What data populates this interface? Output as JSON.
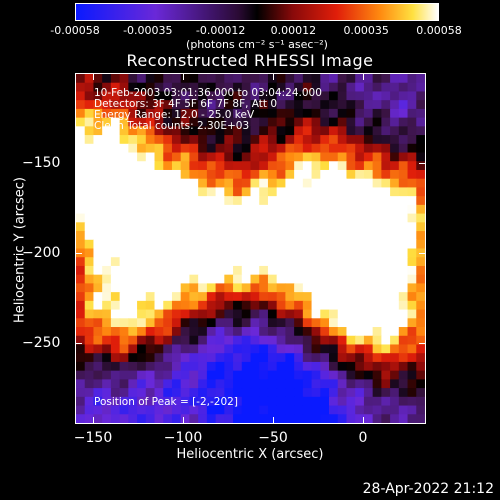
{
  "colorbar": {
    "ticks": [
      "-0.00058",
      "-0.00035",
      "-0.00012",
      "0.00012",
      "0.00035",
      "0.00058"
    ],
    "unit": "(photons cm⁻² s⁻¹ asec⁻²)",
    "range": [
      -0.00058,
      0.00058
    ]
  },
  "chart_data": {
    "type": "heatmap",
    "title": "Reconstructed RHESSI Image",
    "xlabel": "Heliocentric X (arcsec)",
    "ylabel": "Heliocentric Y (arcsec)",
    "xlim": [
      -160,
      35
    ],
    "ylim": [
      -295,
      -100
    ],
    "x_ticks": [
      "−150",
      "−100",
      "−50",
      "0"
    ],
    "y_ticks": [
      "−150",
      "−200",
      "−250"
    ],
    "x_tick_values": [
      -150,
      -100,
      -50,
      0
    ],
    "y_tick_values": [
      -150,
      -200,
      -250
    ],
    "colormap": "blue-purple-red-orange-yellow-white",
    "peak_position": [
      -2,
      -202
    ],
    "bright_regions": [
      {
        "x": -150,
        "y": -140,
        "level": 0.85
      },
      {
        "x": -140,
        "y": -180,
        "level": 0.9
      },
      {
        "x": -135,
        "y": -235,
        "level": 0.85
      },
      {
        "x": -110,
        "y": -170,
        "level": 0.75
      },
      {
        "x": -80,
        "y": -190,
        "level": 0.7
      },
      {
        "x": -50,
        "y": -195,
        "level": 0.8
      },
      {
        "x": -25,
        "y": -160,
        "level": 0.8
      },
      {
        "x": -2,
        "y": -202,
        "level": 1.0
      },
      {
        "x": 20,
        "y": -175,
        "level": 0.75
      },
      {
        "x": 15,
        "y": -240,
        "level": 0.75
      },
      {
        "x": -20,
        "y": -230,
        "level": 0.6
      },
      {
        "x": -100,
        "y": -215,
        "level": 0.65
      }
    ],
    "dark_regions": [
      {
        "x": -60,
        "y": -255,
        "level": 0.25
      },
      {
        "x": -100,
        "y": -260,
        "level": 0.28
      },
      {
        "x": -40,
        "y": -285,
        "level": 0.12
      },
      {
        "x": 20,
        "y": -120,
        "level": 0.3
      },
      {
        "x": -140,
        "y": -280,
        "level": 0.3
      }
    ]
  },
  "annotations": {
    "time": "10-Feb-2003 03:01:36.000 to 03:04:24.000",
    "detectors": "Detectors: 3F 4F 5F 6F 7F 8F, Att 0",
    "energy": "Energy Range: 12.0 - 25.0 keV",
    "method": "Clean     Total counts: 2.30E+03",
    "peak": "Position of Peak = [-2,-202]"
  },
  "footer": {
    "date": "28-Apr-2022 21:12"
  }
}
